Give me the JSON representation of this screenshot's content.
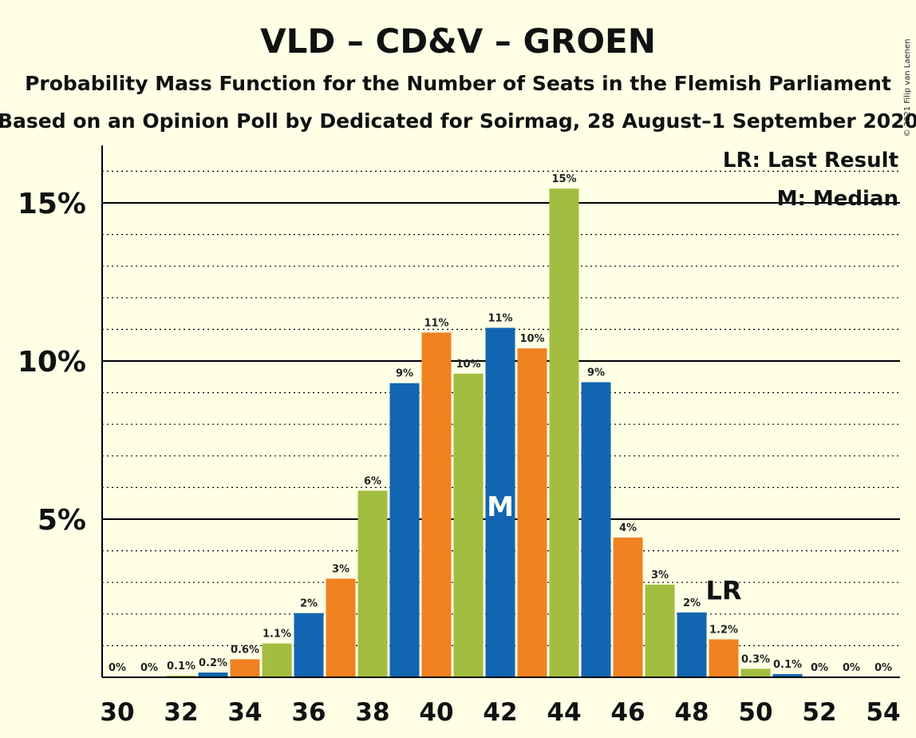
{
  "title": "VLD – CD&V – GROEN",
  "subtitle1": "Probability Mass Function for the Number of Seats in the Flemish Parliament",
  "subtitle2": "Based on an Opinion Poll by Dedicated for Soirmag, 28 August–1 September 2020",
  "copyright": "© 2021 Filip van Laenen",
  "legend": {
    "last_result": "LR: Last Result",
    "median": "M: Median"
  },
  "markers": {
    "median_label": "M",
    "median_seat": 42,
    "last_result_label": "LR",
    "last_result_seat": 49
  },
  "colors": {
    "blue": "#1266B1",
    "orange": "#F08121",
    "green": "#A2BD3F",
    "background": "#FFFFE6"
  },
  "chart_data": {
    "type": "bar",
    "xlabel": "",
    "ylabel": "",
    "ylim": [
      0,
      16.8
    ],
    "y_major_ticks": [
      5,
      10,
      15
    ],
    "y_tick_labels": [
      "5%",
      "10%",
      "15%"
    ],
    "y_minor_step": 1,
    "x_tick_labels": [
      "30",
      "32",
      "34",
      "36",
      "38",
      "40",
      "42",
      "44",
      "46",
      "48",
      "50",
      "52",
      "54"
    ],
    "bar_colors_cycle": [
      "#1266B1",
      "#F08121",
      "#A2BD3F"
    ],
    "bars": [
      {
        "seats": 30,
        "value": 0,
        "label": "0%"
      },
      {
        "seats": 31,
        "value": 0,
        "label": "0%"
      },
      {
        "seats": 32,
        "value": 0.05,
        "label": "0.1%"
      },
      {
        "seats": 33,
        "value": 0.15,
        "label": "0.2%"
      },
      {
        "seats": 34,
        "value": 0.57,
        "label": "0.6%"
      },
      {
        "seats": 35,
        "value": 1.07,
        "label": "1.1%"
      },
      {
        "seats": 36,
        "value": 2.03,
        "label": "2%"
      },
      {
        "seats": 37,
        "value": 3.12,
        "label": "3%"
      },
      {
        "seats": 38,
        "value": 5.9,
        "label": "6%"
      },
      {
        "seats": 39,
        "value": 9.3,
        "label": "9%"
      },
      {
        "seats": 40,
        "value": 10.9,
        "label": "11%"
      },
      {
        "seats": 41,
        "value": 9.6,
        "label": "10%"
      },
      {
        "seats": 42,
        "value": 11.05,
        "label": "11%"
      },
      {
        "seats": 43,
        "value": 10.4,
        "label": "10%"
      },
      {
        "seats": 44,
        "value": 15.45,
        "label": "15%"
      },
      {
        "seats": 45,
        "value": 9.33,
        "label": "9%"
      },
      {
        "seats": 46,
        "value": 4.42,
        "label": "4%"
      },
      {
        "seats": 47,
        "value": 2.93,
        "label": "3%"
      },
      {
        "seats": 48,
        "value": 2.05,
        "label": "2%"
      },
      {
        "seats": 49,
        "value": 1.2,
        "label": "1.2%"
      },
      {
        "seats": 50,
        "value": 0.27,
        "label": "0.3%"
      },
      {
        "seats": 51,
        "value": 0.1,
        "label": "0.1%"
      },
      {
        "seats": 52,
        "value": 0,
        "label": "0%"
      },
      {
        "seats": 53,
        "value": 0,
        "label": "0%"
      },
      {
        "seats": 54,
        "value": 0,
        "label": "0%"
      }
    ]
  }
}
